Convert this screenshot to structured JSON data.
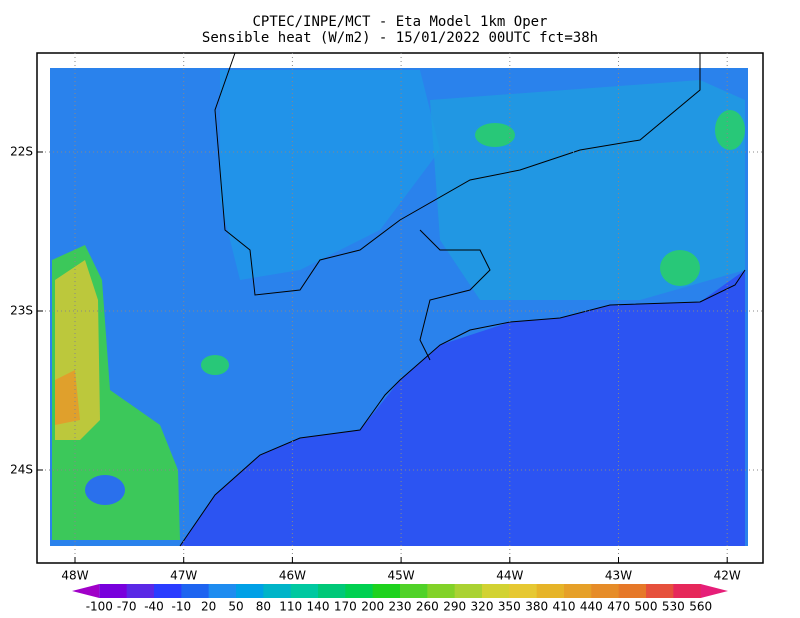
{
  "header": {
    "title": "CPTEC/INPE/MCT -  Eta Model 1km Oper",
    "subtitle": "Sensible heat (W/m2) - 15/01/2022 00UTC fct=38h"
  },
  "map": {
    "lat_labels": [
      "22S",
      "23S",
      "24S"
    ],
    "lon_labels": [
      "48W",
      "47W",
      "46W",
      "45W",
      "44W",
      "43W",
      "42W"
    ]
  },
  "colorbar": {
    "labels": [
      -100,
      -70,
      -40,
      -10,
      20,
      50,
      80,
      110,
      140,
      170,
      200,
      230,
      260,
      290,
      320,
      350,
      380,
      410,
      440,
      470,
      500,
      530,
      560
    ],
    "colors": [
      "#a000c8",
      "#7800dc",
      "#5a28e6",
      "#2a3cff",
      "#1e64f0",
      "#1e8cf0",
      "#00a0e6",
      "#00b4c8",
      "#00c8a0",
      "#00c878",
      "#00d050",
      "#1ed21e",
      "#50d228",
      "#82d228",
      "#aad232",
      "#d2d232",
      "#e6c832",
      "#e6b428",
      "#e6a028",
      "#e68c28",
      "#e67828",
      "#e6503c",
      "#e6285a",
      "#e61e78"
    ]
  }
}
